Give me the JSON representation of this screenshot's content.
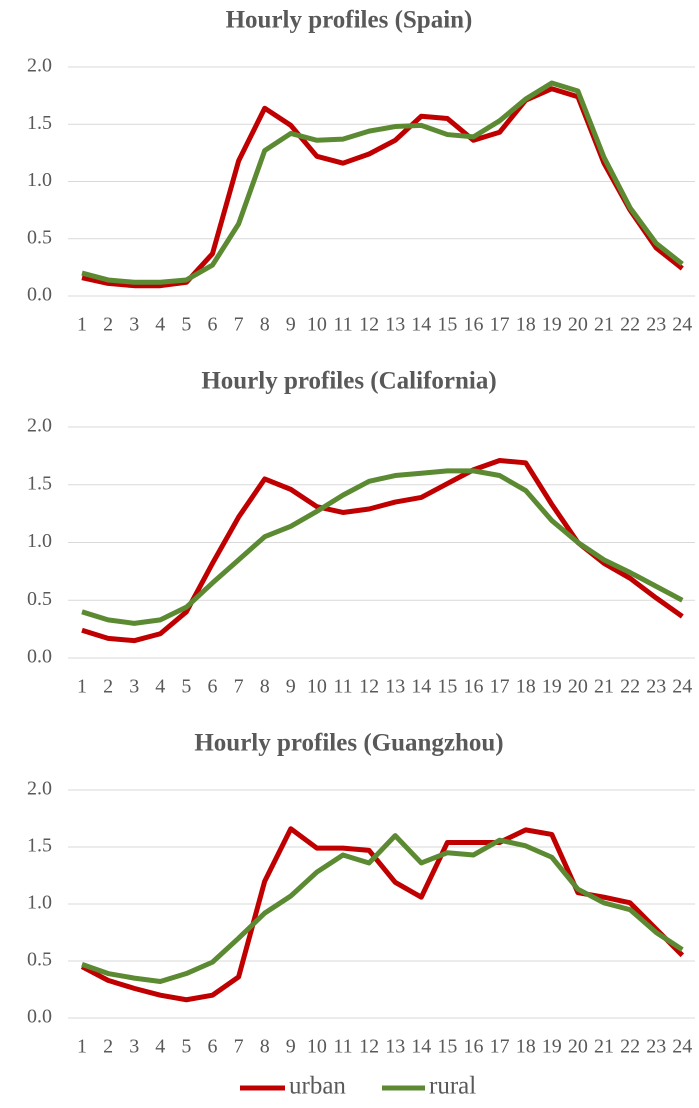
{
  "chart_data": [
    {
      "type": "line",
      "title": "Hourly profiles (Spain)",
      "categories": [
        "1",
        "2",
        "3",
        "4",
        "5",
        "6",
        "7",
        "8",
        "9",
        "10",
        "11",
        "12",
        "13",
        "14",
        "15",
        "16",
        "17",
        "18",
        "19",
        "20",
        "21",
        "22",
        "23",
        "24"
      ],
      "series": [
        {
          "name": "urban",
          "color": "#c00000",
          "values": [
            0.16,
            0.11,
            0.09,
            0.09,
            0.12,
            0.37,
            1.18,
            1.64,
            1.49,
            1.22,
            1.16,
            1.24,
            1.36,
            1.57,
            1.55,
            1.36,
            1.43,
            1.71,
            1.81,
            1.74,
            1.16,
            0.75,
            0.42,
            0.24
          ]
        },
        {
          "name": "rural",
          "color": "#5b8a32",
          "values": [
            0.2,
            0.14,
            0.12,
            0.12,
            0.14,
            0.27,
            0.63,
            1.27,
            1.42,
            1.36,
            1.37,
            1.44,
            1.48,
            1.49,
            1.41,
            1.39,
            1.53,
            1.72,
            1.86,
            1.79,
            1.21,
            0.77,
            0.46,
            0.28
          ]
        }
      ],
      "ylim": [
        0,
        2
      ],
      "yticks": [
        {
          "value": 0,
          "label": "0.0"
        },
        {
          "value": 0.5,
          "label": "0.5"
        },
        {
          "value": 1,
          "label": "1.0"
        },
        {
          "value": 1.5,
          "label": "1.5"
        },
        {
          "value": 2,
          "label": "2.0"
        }
      ],
      "grid": true
    },
    {
      "type": "line",
      "title": "Hourly profiles (California)",
      "categories": [
        "1",
        "2",
        "3",
        "4",
        "5",
        "6",
        "7",
        "8",
        "9",
        "10",
        "11",
        "12",
        "13",
        "14",
        "15",
        "16",
        "17",
        "18",
        "19",
        "20",
        "21",
        "22",
        "23",
        "24"
      ],
      "series": [
        {
          "name": "urban",
          "color": "#c00000",
          "values": [
            0.24,
            0.17,
            0.15,
            0.21,
            0.4,
            0.82,
            1.22,
            1.55,
            1.46,
            1.31,
            1.26,
            1.29,
            1.35,
            1.39,
            1.51,
            1.63,
            1.71,
            1.69,
            1.33,
            1.0,
            0.82,
            0.69,
            0.52,
            0.36
          ]
        },
        {
          "name": "rural",
          "color": "#5b8a32",
          "values": [
            0.4,
            0.33,
            0.3,
            0.33,
            0.44,
            0.65,
            0.85,
            1.05,
            1.14,
            1.27,
            1.41,
            1.53,
            1.58,
            1.6,
            1.62,
            1.62,
            1.58,
            1.45,
            1.19,
            1.0,
            0.85,
            0.74,
            0.62,
            0.5
          ]
        }
      ],
      "ylim": [
        0,
        2
      ],
      "yticks": [
        {
          "value": 0,
          "label": "0.0"
        },
        {
          "value": 0.5,
          "label": "0.5"
        },
        {
          "value": 1,
          "label": "1.0"
        },
        {
          "value": 1.5,
          "label": "1.5"
        },
        {
          "value": 2,
          "label": "2.0"
        }
      ],
      "grid": true
    },
    {
      "type": "line",
      "title": "Hourly profiles (Guangzhou)",
      "categories": [
        "1",
        "2",
        "3",
        "4",
        "5",
        "6",
        "7",
        "8",
        "9",
        "10",
        "11",
        "12",
        "13",
        "14",
        "15",
        "16",
        "17",
        "18",
        "19",
        "20",
        "21",
        "22",
        "23",
        "24"
      ],
      "series": [
        {
          "name": "urban",
          "color": "#c00000",
          "values": [
            0.45,
            0.33,
            0.26,
            0.2,
            0.16,
            0.2,
            0.36,
            1.2,
            1.66,
            1.49,
            1.49,
            1.47,
            1.19,
            1.06,
            1.54,
            1.54,
            1.54,
            1.65,
            1.61,
            1.1,
            1.06,
            1.01,
            0.78,
            0.55
          ]
        },
        {
          "name": "rural",
          "color": "#5b8a32",
          "values": [
            0.47,
            0.39,
            0.35,
            0.32,
            0.39,
            0.49,
            0.7,
            0.92,
            1.07,
            1.28,
            1.43,
            1.36,
            1.6,
            1.36,
            1.45,
            1.43,
            1.56,
            1.51,
            1.41,
            1.13,
            1.01,
            0.95,
            0.75,
            0.6
          ]
        }
      ],
      "ylim": [
        0,
        2
      ],
      "yticks": [
        {
          "value": 0,
          "label": "0.0"
        },
        {
          "value": 0.5,
          "label": "0.5"
        },
        {
          "value": 1,
          "label": "1.0"
        },
        {
          "value": 1.5,
          "label": "1.5"
        },
        {
          "value": 2,
          "label": "2.0"
        }
      ],
      "grid": true,
      "legend": "bottom"
    }
  ]
}
